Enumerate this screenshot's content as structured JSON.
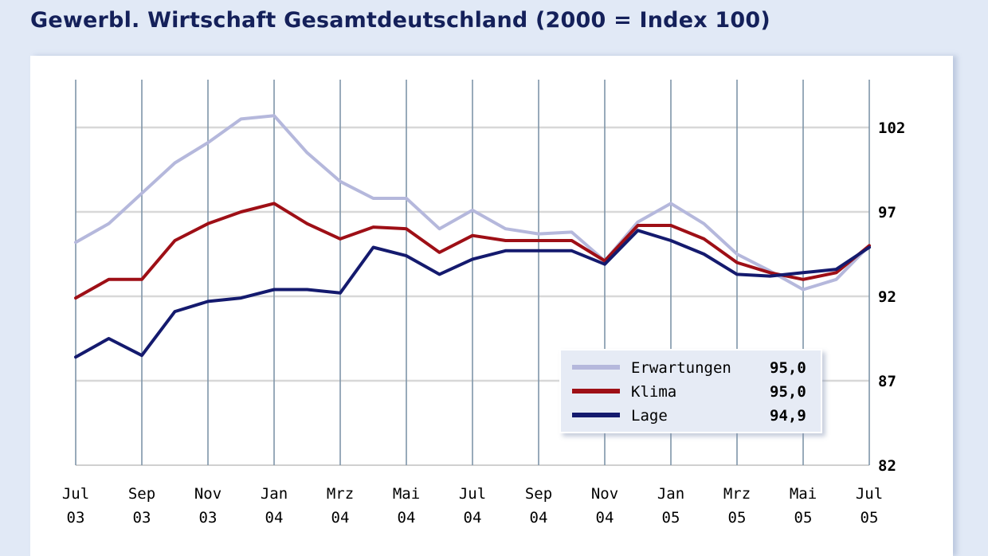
{
  "subtitle": "Gewerbl. Wirtschaft Gesamtdeutschland (2000 = Index 100)",
  "chart_data": {
    "type": "line",
    "title": "Gewerbl. Wirtschaft Gesamtdeutschland (2000 = Index 100)",
    "xlabel": "",
    "ylabel": "",
    "ylim": [
      82,
      105
    ],
    "yticks": [
      "102",
      "97",
      "92",
      "87",
      "82"
    ],
    "ytick_values": [
      102,
      97,
      92,
      87,
      82
    ],
    "xticks": [
      {
        "month": "Jul",
        "year": "03"
      },
      {
        "month": "Sep",
        "year": "03"
      },
      {
        "month": "Nov",
        "year": "03"
      },
      {
        "month": "Jan",
        "year": "04"
      },
      {
        "month": "Mrz",
        "year": "04"
      },
      {
        "month": "Mai",
        "year": "04"
      },
      {
        "month": "Jul",
        "year": "04"
      },
      {
        "month": "Sep",
        "year": "04"
      },
      {
        "month": "Nov",
        "year": "04"
      },
      {
        "month": "Jan",
        "year": "05"
      },
      {
        "month": "Mrz",
        "year": "05"
      },
      {
        "month": "Mai",
        "year": "05"
      },
      {
        "month": "Jul",
        "year": "05"
      }
    ],
    "x": [
      "Jul 03",
      "Aug 03",
      "Sep 03",
      "Okt 03",
      "Nov 03",
      "Dez 03",
      "Jan 04",
      "Feb 04",
      "Mrz 04",
      "Apr 04",
      "Mai 04",
      "Jun 04",
      "Jul 04",
      "Aug 04",
      "Sep 04",
      "Okt 04",
      "Nov 04",
      "Dez 04",
      "Jan 05",
      "Feb 05",
      "Mrz 05",
      "Apr 05",
      "Mai 05",
      "Jun 05",
      "Jul 05"
    ],
    "series": [
      {
        "name": "Erwartungen",
        "color": "#b5b8dc",
        "values": [
          95.2,
          96.3,
          98.1,
          99.9,
          101.1,
          102.5,
          102.7,
          100.5,
          98.8,
          97.8,
          97.8,
          96.0,
          97.1,
          96.0,
          95.7,
          95.8,
          94.1,
          96.4,
          97.5,
          96.3,
          94.5,
          93.5,
          92.4,
          93.0,
          95.0
        ]
      },
      {
        "name": "Klima",
        "color": "#9e0f16",
        "values": [
          91.9,
          93.0,
          93.0,
          95.3,
          96.3,
          97.0,
          97.5,
          96.3,
          95.4,
          96.1,
          96.0,
          94.6,
          95.6,
          95.3,
          95.3,
          95.3,
          94.1,
          96.2,
          96.2,
          95.4,
          94.0,
          93.4,
          93.0,
          93.4,
          95.0
        ]
      },
      {
        "name": "Lage",
        "color": "#141a6e",
        "values": [
          88.4,
          89.5,
          88.5,
          91.1,
          91.7,
          91.9,
          92.4,
          92.4,
          92.2,
          94.9,
          94.4,
          93.3,
          94.2,
          94.7,
          94.7,
          94.7,
          93.9,
          95.9,
          95.3,
          94.5,
          93.3,
          93.2,
          93.4,
          93.6,
          94.9
        ]
      }
    ],
    "legend": [
      {
        "label": "Erwartungen",
        "value": "95,0"
      },
      {
        "label": "Klima",
        "value": "95,0"
      },
      {
        "label": "Lage",
        "value": "94,9"
      }
    ],
    "legend_position": "lower-right",
    "grid": true
  }
}
